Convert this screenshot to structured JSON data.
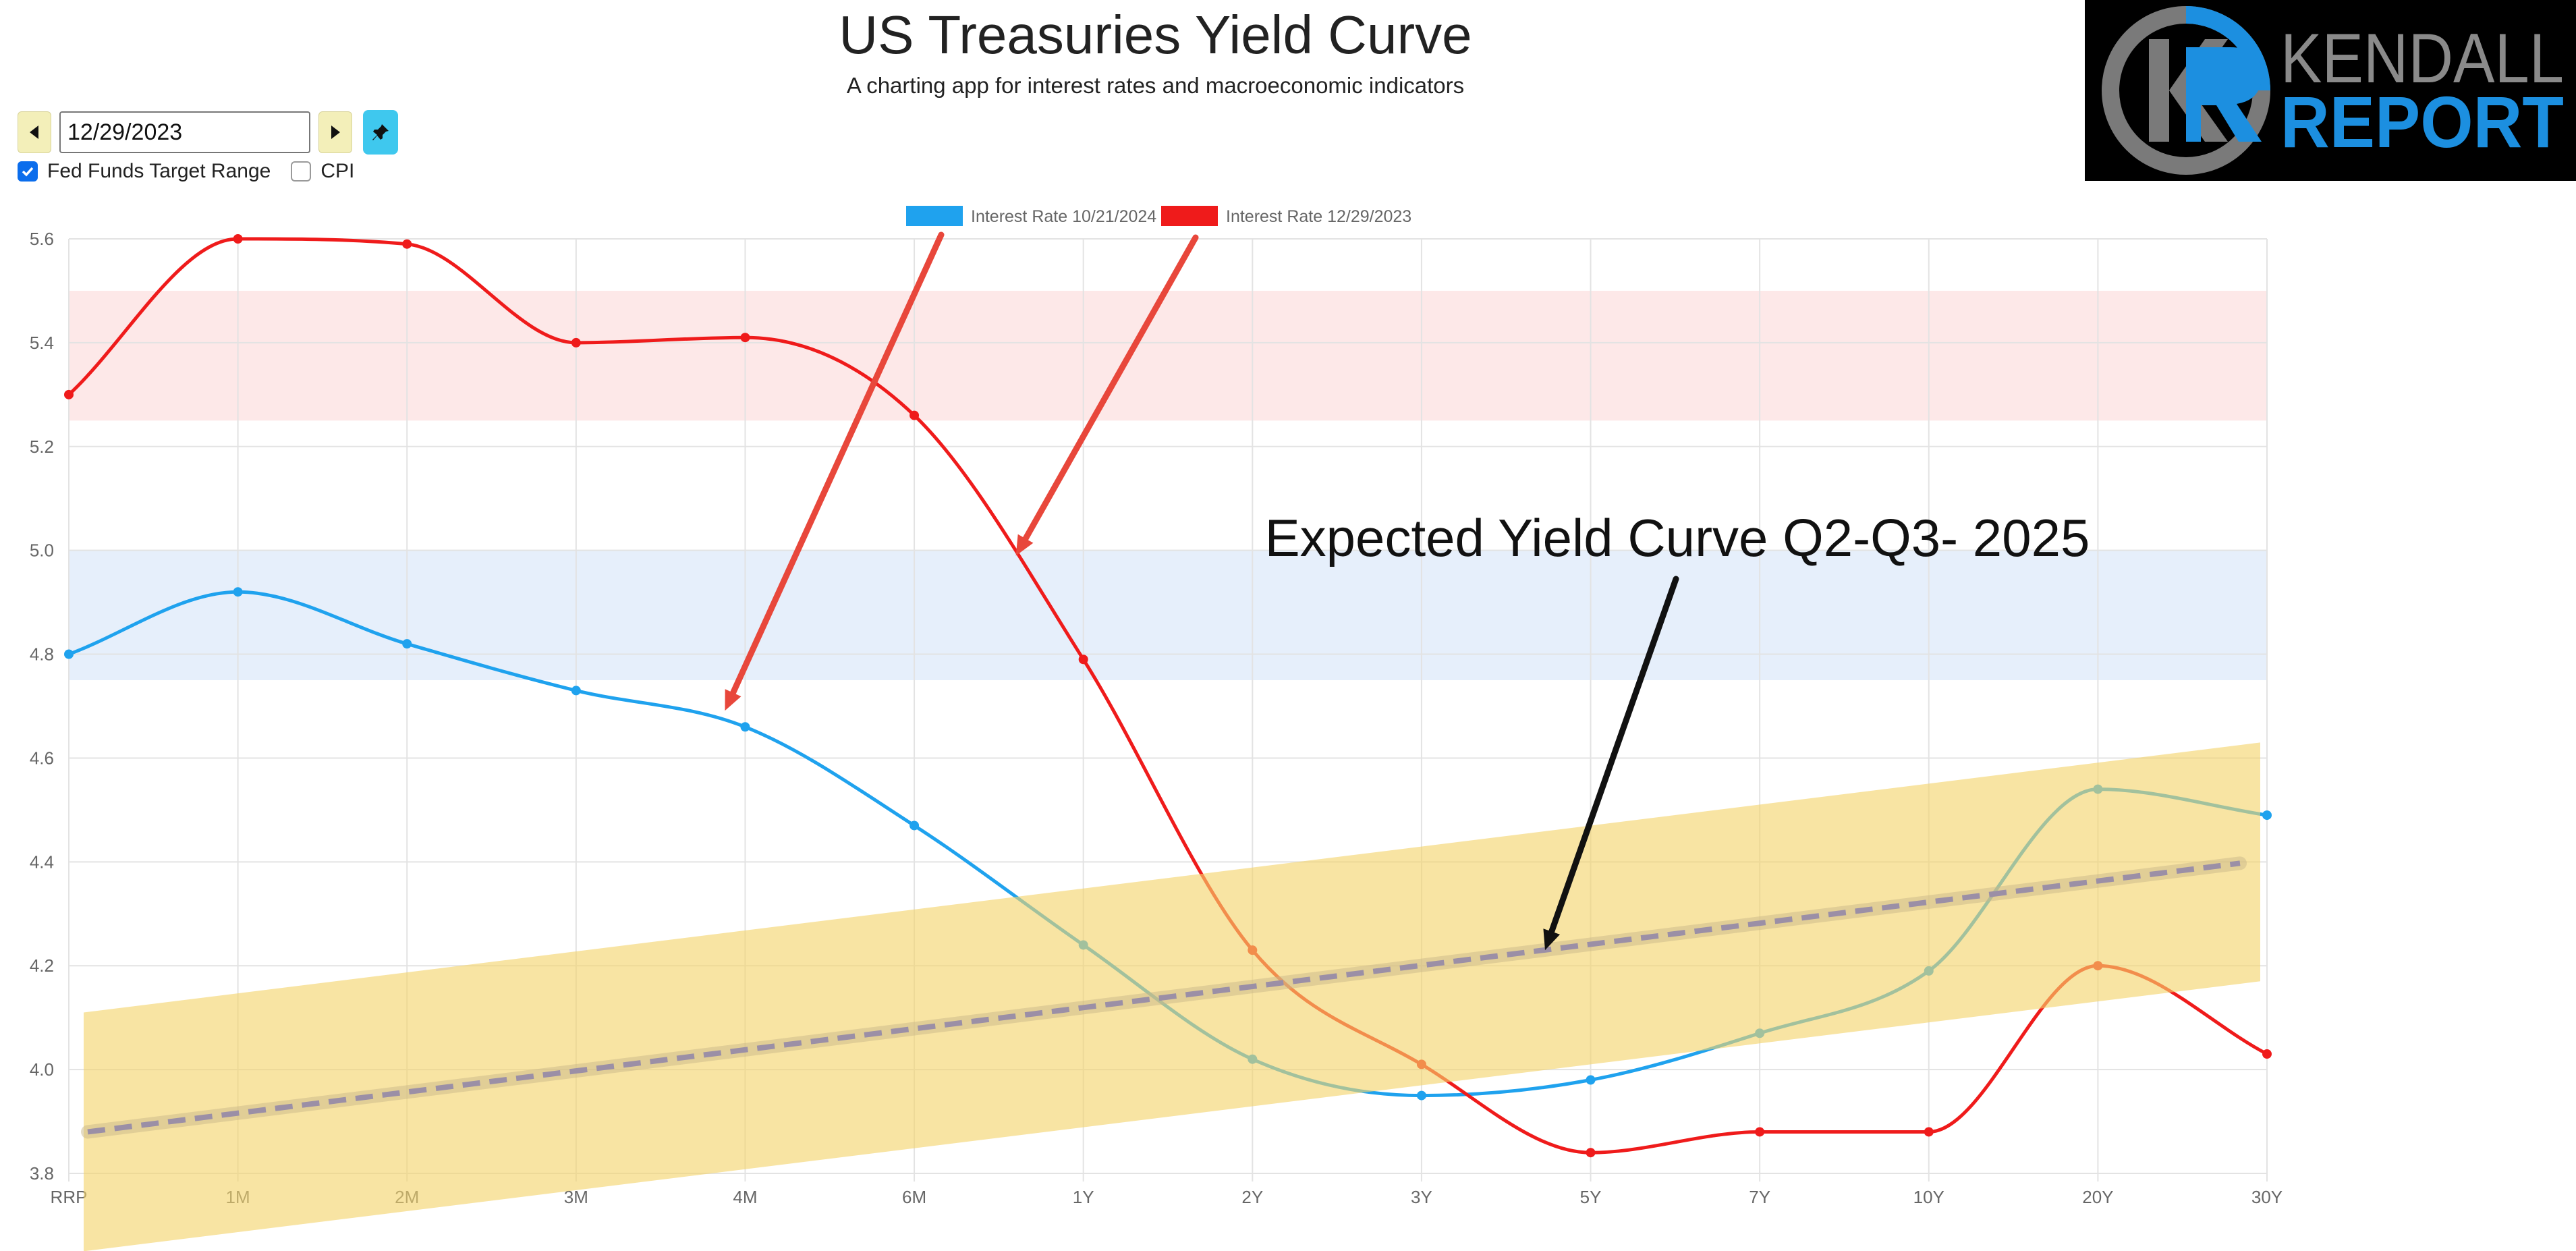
{
  "header": {
    "title": "US Treasuries Yield Curve",
    "subtitle": "A charting app for interest rates and macroeconomic indicators"
  },
  "controls": {
    "date_value": "12/29/2023",
    "prev_icon": "triangle-left-icon",
    "next_icon": "triangle-right-icon",
    "pin_icon": "pushpin-icon",
    "fed_funds_label": "Fed Funds Target Range",
    "fed_funds_checked": true,
    "cpi_label": "CPI",
    "cpi_checked": false
  },
  "logo": {
    "text_line1": "KENDALL",
    "text_line2": "REPORT",
    "colors": {
      "background": "#000000",
      "ring": "#7a7a7a",
      "accent": "#1c8fe0"
    }
  },
  "chart_data": {
    "type": "line",
    "categories": [
      "RRP",
      "1M",
      "2M",
      "3M",
      "4M",
      "6M",
      "1Y",
      "2Y",
      "3Y",
      "5Y",
      "7Y",
      "10Y",
      "20Y",
      "30Y"
    ],
    "series": [
      {
        "name": "Interest Rate 10/21/2024",
        "color": "#1fa2ee",
        "values": [
          4.8,
          4.92,
          4.82,
          4.73,
          4.66,
          4.47,
          4.24,
          4.02,
          3.95,
          3.98,
          4.07,
          4.19,
          4.54,
          4.49
        ]
      },
      {
        "name": "Interest Rate 12/29/2023",
        "color": "#ef1b1b",
        "values": [
          5.3,
          5.6,
          5.59,
          5.4,
          5.41,
          5.26,
          4.79,
          4.23,
          4.01,
          3.84,
          3.88,
          3.88,
          4.2,
          4.03
        ]
      }
    ],
    "ylim": [
      3.8,
      5.6
    ],
    "yticks": [
      3.8,
      4.0,
      4.2,
      4.4,
      4.6,
      4.8,
      5.0,
      5.2,
      5.4,
      5.6
    ],
    "grid": true,
    "legend": "top-center",
    "bands": [
      {
        "from": 5.25,
        "to": 5.5,
        "color": "#fde8e8"
      },
      {
        "from": 4.75,
        "to": 5.0,
        "color": "#e6effb"
      }
    ],
    "expected_band": {
      "label": "Expected Yield Curve Q2-Q3- 2025",
      "start": 3.88,
      "end": 4.4,
      "half_width": 0.23,
      "fill": "#f4d46b",
      "dash_color": "#9b8fa6"
    },
    "annotations": [
      {
        "type": "arrow",
        "color": "#e8473b",
        "points_to_series": 0,
        "category": "4M"
      },
      {
        "type": "arrow",
        "color": "#e8473b",
        "points_to_series": 1,
        "category": "1Y"
      },
      {
        "type": "arrow",
        "color": "#111111",
        "points_to": "expected_band"
      }
    ]
  }
}
